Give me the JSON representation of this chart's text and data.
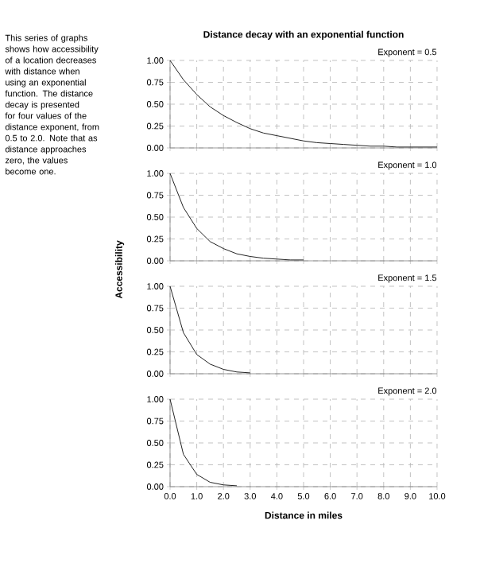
{
  "chart_data": [
    {
      "type": "line",
      "title": "Distance decay with an exponential function",
      "subtitle": "Exponent = 0.5",
      "annotations": [
        "This series of graphs shows how accessibility of a location decreases with distance when using an exponential function. The distance decay is presented for four values of the distance exponent, from 0.5 to 2.0. Note that as distance approaches zero, the values become one."
      ],
      "x": [
        0,
        0.5,
        1,
        1.5,
        2,
        2.5,
        3,
        3.5,
        4,
        4.5,
        5,
        5.5,
        6,
        6.5,
        7,
        7.5,
        8,
        8.5,
        9,
        9.5,
        10
      ],
      "series": [
        {
          "color": "#222222",
          "values": [
            1,
            0.78,
            0.61,
            0.47,
            0.37,
            0.29,
            0.22,
            0.17,
            0.14,
            0.11,
            0.08,
            0.06,
            0.05,
            0.04,
            0.03,
            0.02,
            0.02,
            0.01,
            0.01,
            0.01,
            0.01
          ]
        }
      ],
      "xlim": [
        0,
        10
      ],
      "xticks": [
        0,
        1,
        2,
        3,
        4,
        5,
        6,
        7,
        8,
        9,
        10
      ],
      "ylim": [
        0,
        1
      ],
      "yticks": [
        {
          "value": 0,
          "label": "0.00"
        },
        {
          "value": 0.25,
          "label": "0.25"
        },
        {
          "value": 0.5,
          "label": "0.50"
        },
        {
          "value": 0.75,
          "label": "0.75"
        },
        {
          "value": 1,
          "label": "1.00"
        }
      ],
      "grid": true,
      "tick_labels": "y"
    },
    {
      "type": "line",
      "subtitle": "Exponent = 1.0",
      "ylabel": "Accessibility",
      "x": [
        0,
        0.5,
        1,
        1.5,
        2,
        2.5,
        3,
        3.5,
        4,
        4.5,
        5
      ],
      "series": [
        {
          "color": "#222222",
          "values": [
            1,
            0.61,
            0.37,
            0.22,
            0.14,
            0.08,
            0.05,
            0.03,
            0.02,
            0.01,
            0.01
          ]
        }
      ],
      "xlim": [
        0,
        10
      ],
      "xticks": [
        0,
        1,
        2,
        3,
        4,
        5,
        6,
        7,
        8,
        9,
        10
      ],
      "ylim": [
        0,
        1
      ],
      "yticks": [
        {
          "value": 0,
          "label": "0.00"
        },
        {
          "value": 0.25,
          "label": "0.25"
        },
        {
          "value": 0.5,
          "label": "0.50"
        },
        {
          "value": 0.75,
          "label": "0.75"
        },
        {
          "value": 1,
          "label": "1.00"
        }
      ],
      "grid": true,
      "tick_labels": "y"
    },
    {
      "type": "line",
      "subtitle": "Exponent = 1.5",
      "x": [
        0,
        0.5,
        1,
        1.5,
        2,
        2.5,
        3
      ],
      "series": [
        {
          "color": "#222222",
          "values": [
            1,
            0.47,
            0.22,
            0.11,
            0.05,
            0.02,
            0.01
          ]
        }
      ],
      "xlim": [
        0,
        10
      ],
      "xticks": [
        0,
        1,
        2,
        3,
        4,
        5,
        6,
        7,
        8,
        9,
        10
      ],
      "ylim": [
        0,
        1
      ],
      "yticks": [
        {
          "value": 0,
          "label": "0.00"
        },
        {
          "value": 0.25,
          "label": "0.25"
        },
        {
          "value": 0.5,
          "label": "0.50"
        },
        {
          "value": 0.75,
          "label": "0.75"
        },
        {
          "value": 1,
          "label": "1.00"
        }
      ],
      "grid": true,
      "tick_labels": "y"
    },
    {
      "type": "line",
      "subtitle": "Exponent = 2.0",
      "xlabel": "Distance in miles",
      "x": [
        0,
        0.5,
        1,
        1.5,
        2,
        2.5
      ],
      "series": [
        {
          "color": "#222222",
          "values": [
            1,
            0.37,
            0.14,
            0.05,
            0.02,
            0.01
          ]
        }
      ],
      "xlim": [
        0,
        10
      ],
      "xticks": [
        {
          "value": 0,
          "label": "0.0"
        },
        {
          "value": 1,
          "label": "1.0"
        },
        {
          "value": 2,
          "label": "2.0"
        },
        {
          "value": 3,
          "label": "3.0"
        },
        {
          "value": 4,
          "label": "4.0"
        },
        {
          "value": 5,
          "label": "5.0"
        },
        {
          "value": 6,
          "label": "6.0"
        },
        {
          "value": 7,
          "label": "7.0"
        },
        {
          "value": 8,
          "label": "8.0"
        },
        {
          "value": 9,
          "label": "9.0"
        },
        {
          "value": 10,
          "label": "10.0"
        }
      ],
      "ylim": [
        0,
        1
      ],
      "yticks": [
        {
          "value": 0,
          "label": "0.00"
        },
        {
          "value": 0.25,
          "label": "0.25"
        },
        {
          "value": 0.5,
          "label": "0.50"
        },
        {
          "value": 0.75,
          "label": "0.75"
        },
        {
          "value": 1,
          "label": "1.00"
        }
      ],
      "grid": true
    }
  ]
}
